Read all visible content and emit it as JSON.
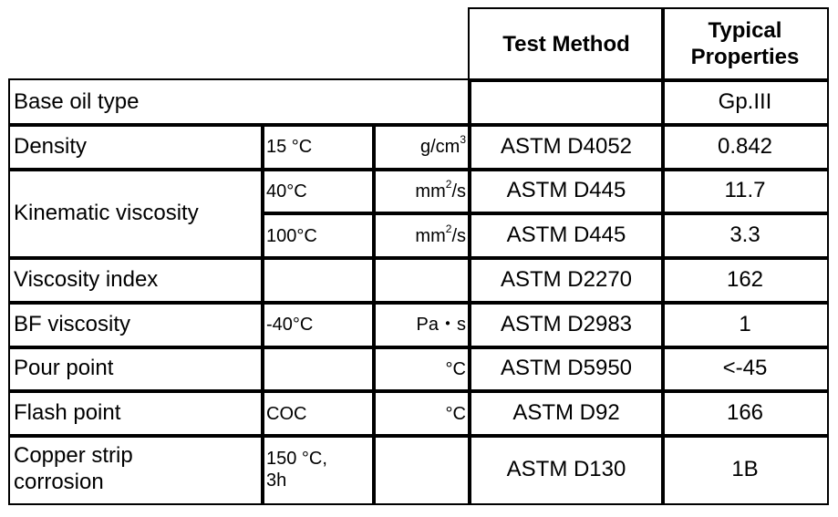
{
  "header": {
    "test_method": "Test Method",
    "typical": [
      "Typical",
      "Properties"
    ]
  },
  "rows": [
    {
      "label": "Base oil type",
      "label_span": 3,
      "lines": [
        {
          "value": "Gp.III"
        }
      ]
    },
    {
      "label": "Density",
      "lines": [
        {
          "condition": "15 °C",
          "unit": [
            "g/cm",
            "3"
          ],
          "method": "ASTM D4052",
          "value": "0.842"
        }
      ]
    },
    {
      "label": "Kinematic viscosity",
      "lines": [
        {
          "condition": "40°C",
          "unit": [
            "mm",
            "2",
            "/s"
          ],
          "method": "ASTM D445",
          "value": "11.7"
        },
        {
          "condition": "100°C",
          "unit": [
            "mm",
            "2",
            "/s"
          ],
          "method": "ASTM D445",
          "value": "3.3"
        }
      ]
    },
    {
      "label": "Viscosity index",
      "lines": [
        {
          "method": "ASTM D2270",
          "value": "162"
        }
      ]
    },
    {
      "label": "BF viscosity",
      "lines": [
        {
          "condition": "-40°C",
          "unit": [
            "Pa・s"
          ],
          "method": "ASTM D2983",
          "value": "1"
        }
      ]
    },
    {
      "label": "Pour point",
      "lines": [
        {
          "unit": [
            "°C"
          ],
          "method": "ASTM D5950",
          "value": "<-45"
        }
      ]
    },
    {
      "label": "Flash point",
      "lines": [
        {
          "condition": "COC",
          "unit": [
            "°C"
          ],
          "method": "ASTM D92",
          "value": "166"
        }
      ]
    },
    {
      "label": [
        "Copper strip",
        "corrosion"
      ],
      "lines": [
        {
          "condition": [
            "150 °C,",
            "3h"
          ],
          "method": "ASTM D130",
          "value": "1B"
        }
      ]
    }
  ]
}
